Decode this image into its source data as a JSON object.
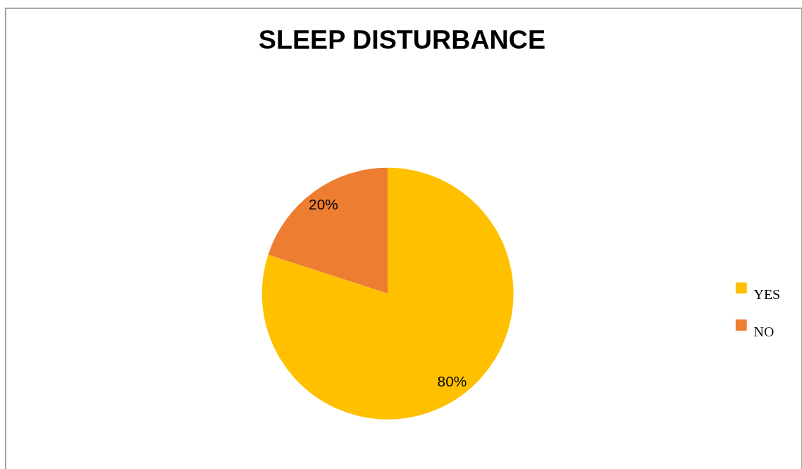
{
  "chart_data": {
    "type": "pie",
    "title": "SLEEP DISTURBANCE",
    "categories": [
      "YES",
      "NO"
    ],
    "values": [
      80,
      20
    ],
    "colors": [
      "#ffc000",
      "#ed7d31"
    ],
    "value_labels": [
      "80%",
      "20%"
    ],
    "legend": "right"
  }
}
